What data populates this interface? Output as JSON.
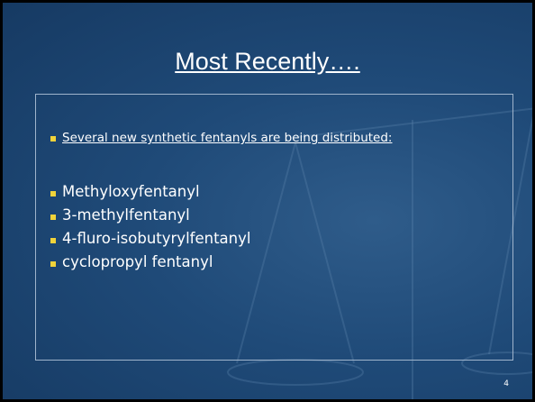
{
  "slide": {
    "title": "Most Recently….",
    "intro": "Several new synthetic fentanyls are being distributed:",
    "items": [
      "Methyloxyfentanyl",
      "3-methylfentanyl",
      "4-fluro-isobutyrylfentanyl",
      "cyclopropyl fentanyl"
    ],
    "page_number": "4"
  }
}
